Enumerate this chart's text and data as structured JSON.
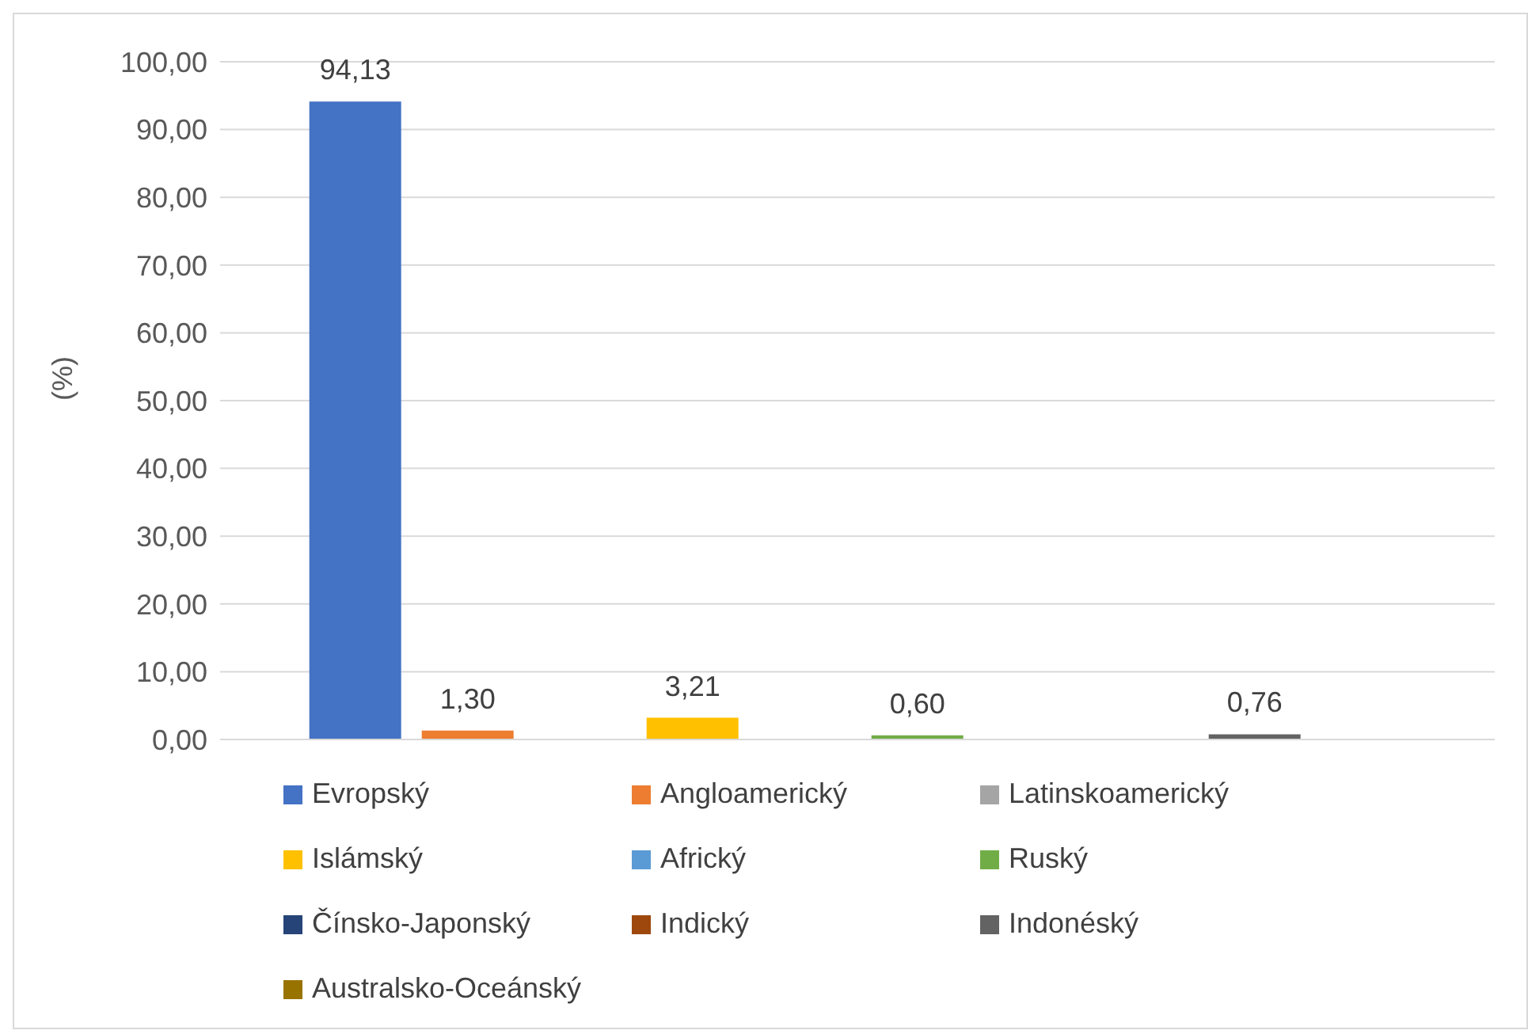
{
  "chart_data": {
    "type": "bar",
    "categories": [
      null
    ],
    "ylabel": "(%)",
    "ylim": [
      0,
      100
    ],
    "yticks": [
      {
        "value": 0,
        "label": "0,00"
      },
      {
        "value": 10,
        "label": "10,00"
      },
      {
        "value": 20,
        "label": "20,00"
      },
      {
        "value": 30,
        "label": "30,00"
      },
      {
        "value": 40,
        "label": "40,00"
      },
      {
        "value": 50,
        "label": "50,00"
      },
      {
        "value": 60,
        "label": "60,00"
      },
      {
        "value": 70,
        "label": "70,00"
      },
      {
        "value": 80,
        "label": "80,00"
      },
      {
        "value": 90,
        "label": "90,00"
      },
      {
        "value": 100,
        "label": "100,00"
      }
    ],
    "grid": "y",
    "legend": "bottom",
    "series": [
      {
        "name": "Evropský",
        "color": "#4472c4",
        "values": [
          94.13
        ],
        "value_labels": [
          "94,13"
        ]
      },
      {
        "name": "Angloamerický",
        "color": "#ed7d31",
        "values": [
          1.3
        ],
        "value_labels": [
          "1,30"
        ]
      },
      {
        "name": "Latinskoamerický",
        "color": "#a5a5a5",
        "values": [
          null
        ],
        "value_labels": [
          null
        ]
      },
      {
        "name": "Islámský",
        "color": "#ffc000",
        "values": [
          3.21
        ],
        "value_labels": [
          "3,21"
        ]
      },
      {
        "name": "Africký",
        "color": "#5b9bd5",
        "values": [
          null
        ],
        "value_labels": [
          null
        ]
      },
      {
        "name": "Ruský",
        "color": "#70ad47",
        "values": [
          0.6
        ],
        "value_labels": [
          "0,60"
        ]
      },
      {
        "name": "Čínsko-Japonský",
        "color": "#264478",
        "values": [
          null
        ],
        "value_labels": [
          null
        ]
      },
      {
        "name": "Indický",
        "color": "#9e480e",
        "values": [
          null
        ],
        "value_labels": [
          null
        ]
      },
      {
        "name": "Indonéský",
        "color": "#636363",
        "values": [
          0.76
        ],
        "value_labels": [
          "0,76"
        ]
      },
      {
        "name": "Australsko-Oceánský",
        "color": "#997300",
        "values": [
          null
        ],
        "value_labels": [
          null
        ]
      }
    ]
  }
}
